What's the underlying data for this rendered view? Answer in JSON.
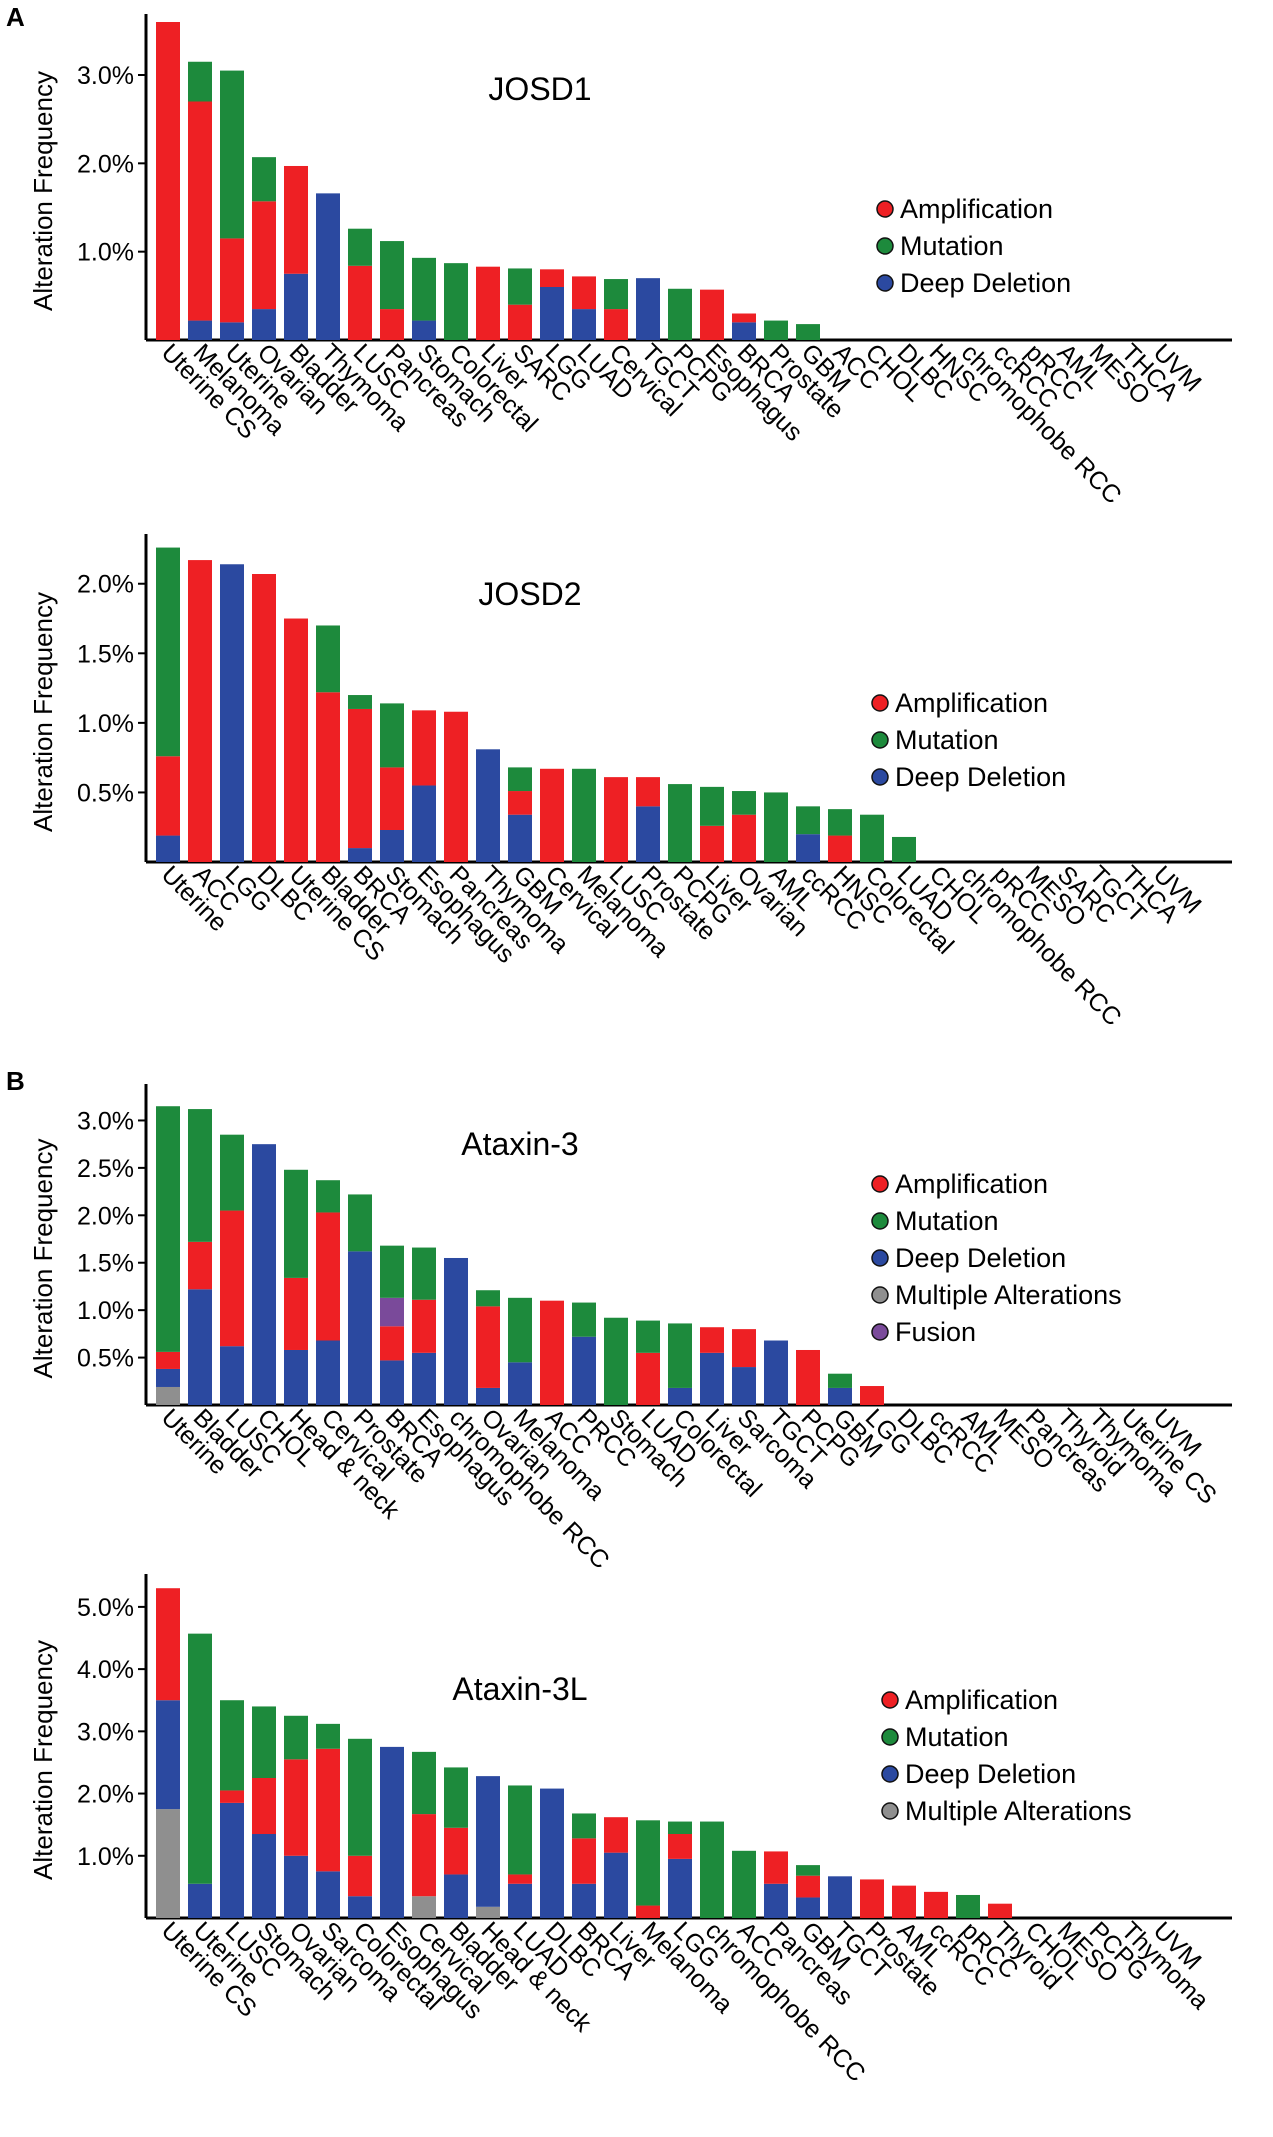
{
  "panel_labels": [
    "A",
    "B"
  ],
  "chart_data": [
    {
      "type": "bar",
      "stacked": true,
      "panel": "A",
      "title": "JOSD1",
      "ylabel": "Alteration Frequency",
      "ylim": [
        0,
        3.6
      ],
      "yticks": [
        1.0,
        2.0,
        3.0
      ],
      "ytick_labels": [
        "1.0%",
        "2.0%",
        "3.0%"
      ],
      "legend": [
        "Amplification",
        "Mutation",
        "Deep Deletion"
      ],
      "colors": {
        "Amplification": "#ee2024",
        "Mutation": "#1d8a3c",
        "Deep Deletion": "#2b49a0",
        "Multiple Alterations": "#8f8f8f",
        "Fusion": "#7a4a9a"
      },
      "categories": [
        "Uterine CS",
        "Melanoma",
        "Uterine",
        "Ovarian",
        "Bladder",
        "Thymoma",
        "LUSC",
        "Pancreas",
        "Stomach",
        "Colorectal",
        "Liver",
        "SARC",
        "LGG",
        "LUAD",
        "Cervical",
        "TGCT",
        "PCPG",
        "Esophagus",
        "BRCA",
        "Prostate",
        "GBM",
        "ACC",
        "CHOL",
        "DLBC",
        "HNSC",
        "chromophobe RCC",
        "ccRCC",
        "pRCC",
        "AML",
        "MESO",
        "THCA",
        "UVM"
      ],
      "series": [
        {
          "name": "Deep Deletion",
          "values": [
            0,
            0.22,
            0.2,
            0.35,
            0.75,
            1.66,
            0,
            0,
            0.22,
            0,
            0,
            0,
            0.6,
            0.35,
            0,
            0.7,
            0,
            0,
            0.2,
            0,
            0,
            0,
            0,
            0,
            0,
            0,
            0,
            0,
            0,
            0,
            0,
            0
          ]
        },
        {
          "name": "Amplification",
          "values": [
            3.6,
            2.48,
            0.95,
            1.22,
            1.22,
            0,
            0.84,
            0.35,
            0,
            0,
            0.83,
            0.4,
            0.2,
            0.37,
            0.35,
            0,
            0,
            0.57,
            0.1,
            0,
            0,
            0,
            0,
            0,
            0,
            0,
            0,
            0,
            0,
            0,
            0,
            0
          ]
        },
        {
          "name": "Mutation",
          "values": [
            0,
            0.45,
            1.9,
            0.5,
            0,
            0,
            0.42,
            0.77,
            0.71,
            0.87,
            0,
            0.41,
            0,
            0,
            0.34,
            0,
            0.58,
            0,
            0,
            0.22,
            0.18,
            0,
            0,
            0,
            0,
            0,
            0,
            0,
            0,
            0,
            0,
            0
          ]
        }
      ]
    },
    {
      "type": "bar",
      "stacked": true,
      "panel": "A",
      "title": "JOSD2",
      "ylabel": "Alteration Frequency",
      "ylim": [
        0,
        2.3
      ],
      "yticks": [
        0.5,
        1.0,
        1.5,
        2.0
      ],
      "ytick_labels": [
        "0.5%",
        "1.0%",
        "1.5%",
        "2.0%"
      ],
      "legend": [
        "Amplification",
        "Mutation",
        "Deep Deletion"
      ],
      "colors": {
        "Amplification": "#ee2024",
        "Mutation": "#1d8a3c",
        "Deep Deletion": "#2b49a0",
        "Multiple Alterations": "#8f8f8f",
        "Fusion": "#7a4a9a"
      },
      "categories": [
        "Uterine",
        "ACC",
        "LGG",
        "DLBC",
        "Uterine CS",
        "Bladder",
        "BRCA",
        "Stomach",
        "Esophagus",
        "Pancreas",
        "Thymoma",
        "GBM",
        "Cervical",
        "Melanoma",
        "LUSC",
        "Prostate",
        "PCPG",
        "Liver",
        "Ovarian",
        "AML",
        "ccRCC",
        "HNSC",
        "Colorectal",
        "LUAD",
        "CHOL",
        "chromophobe RCC",
        "pRCC",
        "MESO",
        "SARC",
        "TGCT",
        "THCA",
        "UVM"
      ],
      "series": [
        {
          "name": "Deep Deletion",
          "values": [
            0.19,
            0,
            2.14,
            0,
            0,
            0,
            0.1,
            0.23,
            0.55,
            0,
            0.81,
            0.34,
            0,
            0,
            0,
            0.4,
            0,
            0,
            0,
            0,
            0.2,
            0,
            0,
            0,
            0,
            0,
            0,
            0,
            0,
            0,
            0,
            0
          ]
        },
        {
          "name": "Amplification",
          "values": [
            0.57,
            2.17,
            0,
            2.07,
            1.75,
            1.22,
            1.0,
            0.45,
            0.54,
            1.08,
            0,
            0.17,
            0.67,
            0,
            0.61,
            0.21,
            0,
            0.26,
            0.34,
            0,
            0,
            0.19,
            0,
            0,
            0,
            0,
            0,
            0,
            0,
            0,
            0,
            0
          ]
        },
        {
          "name": "Mutation",
          "values": [
            1.5,
            0,
            0,
            0,
            0,
            0.48,
            0.1,
            0.46,
            0,
            0,
            0,
            0.17,
            0,
            0.67,
            0,
            0,
            0.56,
            0.28,
            0.17,
            0.5,
            0.2,
            0.19,
            0.34,
            0.18,
            0,
            0,
            0,
            0,
            0,
            0,
            0,
            0
          ]
        }
      ]
    },
    {
      "type": "bar",
      "stacked": true,
      "panel": "B",
      "title": "Ataxin-3",
      "ylabel": "Alteration Frequency",
      "ylim": [
        0,
        3.3
      ],
      "yticks": [
        0.5,
        1.0,
        1.5,
        2.0,
        2.5,
        3.0
      ],
      "ytick_labels": [
        "0.5%",
        "1.0%",
        "1.5%",
        "2.0%",
        "2.5%",
        "3.0%"
      ],
      "legend": [
        "Amplification",
        "Mutation",
        "Deep Deletion",
        "Multiple Alterations",
        "Fusion"
      ],
      "colors": {
        "Amplification": "#ee2024",
        "Mutation": "#1d8a3c",
        "Deep Deletion": "#2b49a0",
        "Multiple Alterations": "#8f8f8f",
        "Fusion": "#7a4a9a"
      },
      "categories": [
        "Uterine",
        "Bladder",
        "LUSC",
        "CHOL",
        "Head & neck",
        "Cervical",
        "Prostate",
        "BRCA",
        "Esophagus",
        "chromophobe RCC",
        "Ovarian",
        "Melanoma",
        "ACC",
        "PRCC",
        "Stomach",
        "LUAD",
        "Colorectal",
        "Liver",
        "Sarcoma",
        "TGCT",
        "PCPG",
        "GBM",
        "LGG",
        "DLBC",
        "ccRCC",
        "AML",
        "MESO",
        "Pancreas",
        "Thyroid",
        "Thymoma",
        "Uterine CS",
        "UVM"
      ],
      "series": [
        {
          "name": "Multiple Alterations",
          "values": [
            0.19,
            0,
            0,
            0,
            0,
            0,
            0,
            0,
            0,
            0,
            0,
            0,
            0,
            0,
            0,
            0,
            0,
            0,
            0,
            0,
            0,
            0,
            0,
            0,
            0,
            0,
            0,
            0,
            0,
            0,
            0,
            0
          ]
        },
        {
          "name": "Deep Deletion",
          "values": [
            0.19,
            1.22,
            0.62,
            2.75,
            0.58,
            0.68,
            1.62,
            0.47,
            0.55,
            1.55,
            0.18,
            0.45,
            0,
            0.72,
            0,
            0,
            0.18,
            0.55,
            0.4,
            0.68,
            0,
            0.18,
            0,
            0,
            0,
            0,
            0,
            0,
            0,
            0,
            0,
            0
          ]
        },
        {
          "name": "Amplification",
          "values": [
            0.18,
            0.5,
            1.43,
            0,
            0.76,
            1.35,
            0,
            0.36,
            0.56,
            0,
            0.86,
            0,
            1.1,
            0,
            0,
            0.55,
            0,
            0.27,
            0.4,
            0,
            0.58,
            0,
            0.2,
            0,
            0,
            0,
            0,
            0,
            0,
            0,
            0,
            0
          ]
        },
        {
          "name": "Fusion",
          "values": [
            0,
            0,
            0,
            0,
            0,
            0,
            0,
            0.3,
            0,
            0,
            0,
            0,
            0,
            0,
            0,
            0,
            0,
            0,
            0,
            0,
            0,
            0,
            0,
            0,
            0,
            0,
            0,
            0,
            0,
            0,
            0,
            0
          ]
        },
        {
          "name": "Mutation",
          "values": [
            2.59,
            1.4,
            0.8,
            0,
            1.14,
            0.34,
            0.6,
            0.55,
            0.55,
            0,
            0.17,
            0.68,
            0,
            0.36,
            0.92,
            0.34,
            0.68,
            0,
            0,
            0,
            0,
            0.15,
            0,
            0,
            0,
            0,
            0,
            0,
            0,
            0,
            0,
            0
          ]
        }
      ]
    },
    {
      "type": "bar",
      "stacked": true,
      "panel": "B",
      "title": "Ataxin-3L",
      "ylabel": "Alteration Frequency",
      "ylim": [
        0,
        5.4
      ],
      "yticks": [
        1.0,
        2.0,
        3.0,
        4.0,
        5.0
      ],
      "ytick_labels": [
        "1.0%",
        "2.0%",
        "3.0%",
        "4.0%",
        "5.0%"
      ],
      "legend": [
        "Amplification",
        "Mutation",
        "Deep Deletion",
        "Multiple Alterations"
      ],
      "colors": {
        "Amplification": "#ee2024",
        "Mutation": "#1d8a3c",
        "Deep Deletion": "#2b49a0",
        "Multiple Alterations": "#8f8f8f",
        "Fusion": "#7a4a9a"
      },
      "categories": [
        "Uterine CS",
        "Uterine",
        "LUSC",
        "Stomach",
        "Ovarian",
        "Sarcoma",
        "Colorectal",
        "Esophagus",
        "Cervical",
        "Bladder",
        "Head & neck",
        "LUAD",
        "DLBC",
        "BRCA",
        "Liver",
        "Melanoma",
        "LGG",
        "chromophobe RCC",
        "ACC",
        "Pancreas",
        "GBM",
        "TGCT",
        "Prostate",
        "AML",
        "ccRCC",
        "pRCC",
        "Thyroid",
        "CHOL",
        "MESO",
        "PCPG",
        "Thymoma",
        "UVM"
      ],
      "series": [
        {
          "name": "Multiple Alterations",
          "values": [
            1.75,
            0,
            0,
            0,
            0,
            0,
            0,
            0,
            0.35,
            0,
            0.18,
            0,
            0,
            0,
            0,
            0,
            0,
            0,
            0,
            0,
            0,
            0,
            0,
            0,
            0,
            0,
            0,
            0,
            0,
            0,
            0,
            0
          ]
        },
        {
          "name": "Deep Deletion",
          "values": [
            1.75,
            0.55,
            1.85,
            1.35,
            1.0,
            0.75,
            0.35,
            2.75,
            0,
            0.7,
            2.1,
            0.55,
            2.08,
            0.55,
            1.05,
            0,
            0.95,
            0,
            0,
            0.55,
            0.33,
            0.67,
            0,
            0,
            0,
            0,
            0,
            0,
            0,
            0,
            0,
            0
          ]
        },
        {
          "name": "Amplification",
          "values": [
            1.8,
            0,
            0.2,
            0.9,
            1.55,
            1.97,
            0.65,
            0,
            1.32,
            0.75,
            0,
            0.15,
            0,
            0.73,
            0.57,
            0.2,
            0.4,
            0,
            0,
            0.52,
            0.35,
            0,
            0.62,
            0.52,
            0.42,
            0,
            0.23,
            0,
            0,
            0,
            0,
            0
          ]
        },
        {
          "name": "Mutation",
          "values": [
            0,
            4.02,
            1.45,
            1.15,
            0.7,
            0.4,
            1.88,
            0,
            1.0,
            0.97,
            0,
            1.43,
            0,
            0.4,
            0,
            1.37,
            0.2,
            1.55,
            1.08,
            0,
            0.17,
            0,
            0,
            0,
            0,
            0.37,
            0,
            0,
            0,
            0,
            0,
            0
          ]
        }
      ]
    }
  ]
}
